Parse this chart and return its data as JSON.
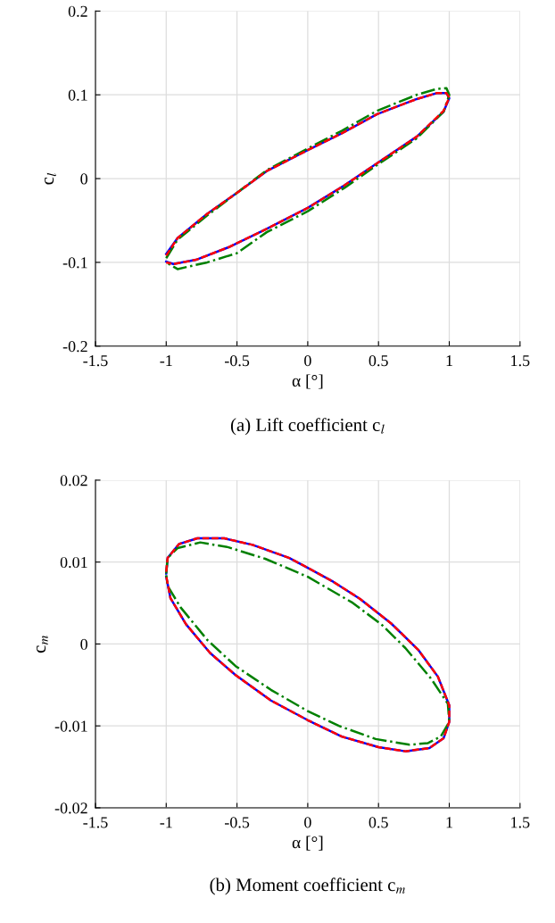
{
  "chart_data": [
    {
      "type": "line",
      "xlabel": "α [°]",
      "ylabel": "c$_{l}$",
      "annotations": [
        "(a) Lift coefficient c$_{l}$"
      ],
      "xlim": [
        -1.5,
        1.5
      ],
      "ylim": [
        -0.2,
        0.2
      ],
      "xticks": [
        -1.5,
        -1,
        -0.5,
        0,
        0.5,
        1,
        1.5
      ],
      "yticks": [
        -0.2,
        -0.1,
        0,
        0.1,
        0.2
      ],
      "grid": true,
      "series": [
        {
          "color": "#0000ff",
          "line_style": "solid",
          "x": [
            -1.0,
            -0.92,
            -0.71,
            -0.5,
            -0.29,
            0,
            0.24,
            0.49,
            0.77,
            0.91,
            0.98,
            1.0,
            0.96,
            0.77,
            0.47,
            0.26,
            0,
            -0.29,
            -0.56,
            -0.79,
            -0.95,
            -1.0
          ],
          "values": [
            -0.09,
            -0.071,
            -0.042,
            -0.017,
            0.009,
            0.034,
            0.054,
            0.077,
            0.095,
            0.102,
            0.102,
            0.096,
            0.08,
            0.05,
            0.016,
            -0.008,
            -0.035,
            -0.06,
            -0.082,
            -0.097,
            -0.102,
            -0.099
          ]
        },
        {
          "color": "#ff0000",
          "line_style": "dashed",
          "x": [
            -1.0,
            -0.92,
            -0.71,
            -0.5,
            -0.29,
            0,
            0.24,
            0.49,
            0.77,
            0.91,
            0.98,
            1.0,
            0.96,
            0.77,
            0.47,
            0.26,
            0,
            -0.29,
            -0.56,
            -0.79,
            -0.95,
            -1.0
          ],
          "values": [
            -0.092,
            -0.071,
            -0.042,
            -0.017,
            0.009,
            0.034,
            0.054,
            0.077,
            0.095,
            0.102,
            0.102,
            0.097,
            0.081,
            0.05,
            0.016,
            -0.008,
            -0.035,
            -0.06,
            -0.082,
            -0.097,
            -0.102,
            -0.1
          ]
        },
        {
          "color": "#008000",
          "line_style": "dashdot",
          "x": [
            -1.0,
            -0.92,
            -0.71,
            -0.5,
            -0.29,
            0,
            0.24,
            0.49,
            0.77,
            0.91,
            0.98,
            1.0,
            0.96,
            0.77,
            0.47,
            0.26,
            0,
            -0.29,
            -0.5,
            -0.71,
            -0.92,
            -1.0
          ],
          "values": [
            -0.095,
            -0.073,
            -0.044,
            -0.017,
            0.01,
            0.036,
            0.057,
            0.081,
            0.1,
            0.107,
            0.108,
            0.1,
            0.08,
            0.048,
            0.014,
            -0.011,
            -0.039,
            -0.064,
            -0.089,
            -0.1,
            -0.108,
            -0.1
          ]
        }
      ]
    },
    {
      "type": "line",
      "xlabel": "α [°]",
      "ylabel": "c$_{m}$",
      "annotations": [
        "(b) Moment coefficient c$_{m}$"
      ],
      "xlim": [
        -1.5,
        1.5
      ],
      "ylim": [
        -0.02,
        0.02
      ],
      "xticks": [
        -1.5,
        -1,
        -0.5,
        0,
        0.5,
        1,
        1.5
      ],
      "yticks": [
        -0.02,
        -0.01,
        0,
        0.01,
        0.02
      ],
      "grid": true,
      "series": [
        {
          "color": "#0000ff",
          "line_style": "solid",
          "x": [
            -1.0,
            -0.99,
            -0.91,
            -0.78,
            -0.59,
            -0.39,
            -0.13,
            0.0,
            0.18,
            0.37,
            0.59,
            0.78,
            0.92,
            1.0,
            1.0,
            0.96,
            0.86,
            0.69,
            0.5,
            0.24,
            0.0,
            -0.26,
            -0.51,
            -0.69,
            -0.86,
            -0.97,
            -1.0
          ],
          "values": [
            0.0086,
            0.0105,
            0.0122,
            0.0129,
            0.0129,
            0.0121,
            0.0105,
            0.0093,
            0.0076,
            0.0055,
            0.0025,
            -0.0007,
            -0.004,
            -0.0075,
            -0.0095,
            -0.0115,
            -0.0127,
            -0.0131,
            -0.0126,
            -0.0113,
            -0.0093,
            -0.0069,
            -0.0038,
            -0.0011,
            0.0024,
            0.0056,
            0.0082
          ]
        },
        {
          "color": "#ff0000",
          "line_style": "dashed",
          "x": [
            -1.0,
            -0.99,
            -0.91,
            -0.78,
            -0.59,
            -0.39,
            -0.13,
            0.0,
            0.18,
            0.37,
            0.59,
            0.78,
            0.92,
            1.0,
            1.0,
            0.96,
            0.86,
            0.69,
            0.5,
            0.24,
            0.0,
            -0.26,
            -0.51,
            -0.69,
            -0.86,
            -0.97,
            -1.0
          ],
          "values": [
            0.0088,
            0.0105,
            0.0122,
            0.0129,
            0.0129,
            0.0121,
            0.0105,
            0.0093,
            0.0076,
            0.0055,
            0.0025,
            -0.0007,
            -0.004,
            -0.0075,
            -0.0095,
            -0.0115,
            -0.0127,
            -0.0131,
            -0.0126,
            -0.0113,
            -0.0093,
            -0.0069,
            -0.0038,
            -0.0011,
            0.0024,
            0.0056,
            0.0083
          ]
        },
        {
          "color": "#008000",
          "line_style": "dashdot",
          "x": [
            -1.0,
            -0.99,
            -0.92,
            -0.76,
            -0.56,
            -0.3,
            0.0,
            0.31,
            0.52,
            0.69,
            0.87,
            0.99,
            1.0,
            0.94,
            0.85,
            0.72,
            0.48,
            0.22,
            0.0,
            -0.26,
            -0.51,
            -0.71,
            -0.9,
            -0.99,
            -1.0
          ],
          "values": [
            0.0086,
            0.0105,
            0.0117,
            0.0124,
            0.0118,
            0.0104,
            0.0082,
            0.0051,
            0.0024,
            -0.0005,
            -0.0042,
            -0.0073,
            -0.0095,
            -0.0113,
            -0.0121,
            -0.0123,
            -0.0116,
            -0.01,
            -0.0082,
            -0.0056,
            -0.0027,
            0.0005,
            0.0045,
            0.0071,
            0.0084
          ]
        }
      ]
    }
  ]
}
